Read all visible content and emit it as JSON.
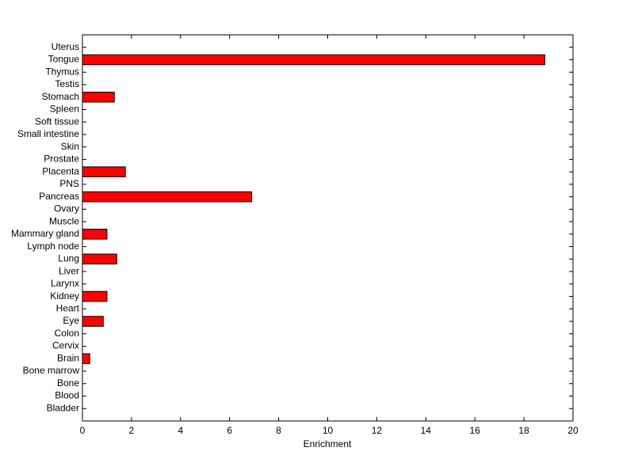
{
  "chart_data": {
    "type": "barh",
    "x_label": "Enrichment",
    "categories": [
      "Bladder",
      "Blood",
      "Bone",
      "Bone marrow",
      "Brain",
      "Cervix",
      "Colon",
      "Eye",
      "Heart",
      "Kidney",
      "Larynx",
      "Liver",
      "Lung",
      "Lymph node",
      "Mammary gland",
      "Muscle",
      "Ovary",
      "Pancreas",
      "PNS",
      "Placenta",
      "Prostate",
      "Skin",
      "Small intestine",
      "Soft tissue",
      "Spleen",
      "Stomach",
      "Testis",
      "Thymus",
      "Tongue",
      "Uterus"
    ],
    "values": [
      0,
      0,
      0,
      0,
      0.3,
      0,
      0,
      0.85,
      0,
      1.0,
      0,
      0,
      1.4,
      0,
      1.0,
      0,
      0,
      6.9,
      0,
      1.75,
      0,
      0,
      0,
      0,
      0,
      1.3,
      0,
      0,
      18.85,
      0
    ],
    "color": "#ff0000",
    "xlim": [
      0,
      20
    ],
    "xticks": [
      0,
      2,
      4,
      6,
      8,
      10,
      12,
      14,
      16,
      18,
      20
    ]
  }
}
